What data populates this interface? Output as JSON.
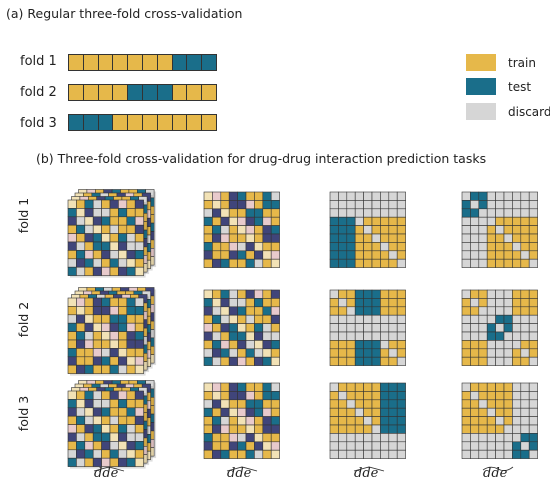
{
  "colors": {
    "train": "#E6B84A",
    "test": "#1A6E8A",
    "discard": "#D6D6D6",
    "navy": "#40457A",
    "pink": "#E8CACC",
    "pale": "#F2E2B6",
    "grid_line": "#333333"
  },
  "section_a": {
    "title": "(a) Regular three-fold cross-validation",
    "folds": [
      {
        "label": "fold 1",
        "cells": [
          "train",
          "train",
          "train",
          "train",
          "train",
          "train",
          "train",
          "test",
          "test",
          "test"
        ]
      },
      {
        "label": "fold 2",
        "cells": [
          "train",
          "train",
          "train",
          "train",
          "test",
          "test",
          "test",
          "train",
          "train",
          "train"
        ]
      },
      {
        "label": "fold 3",
        "cells": [
          "test",
          "test",
          "test",
          "train",
          "train",
          "train",
          "train",
          "train",
          "train",
          "train"
        ]
      }
    ]
  },
  "legend": [
    {
      "key": "train",
      "label": "train"
    },
    {
      "key": "test",
      "label": "test"
    },
    {
      "key": "discard",
      "label": "discard"
    }
  ],
  "section_b": {
    "title": "(b) Three-fold cross-validation for drug-drug interaction prediction tasks",
    "row_labels": [
      "fold 1",
      "fold 2",
      "fold 3"
    ],
    "column_labels": [
      "dde (wide hat)",
      "dde (wide hat)",
      "dde (wide hat)",
      "dde (wide tilde)"
    ],
    "column_label_text": [
      "dde",
      "dde",
      "dde",
      "dde"
    ],
    "column_accents": [
      "hat",
      "hat",
      "hat",
      "tilde"
    ]
  }
}
